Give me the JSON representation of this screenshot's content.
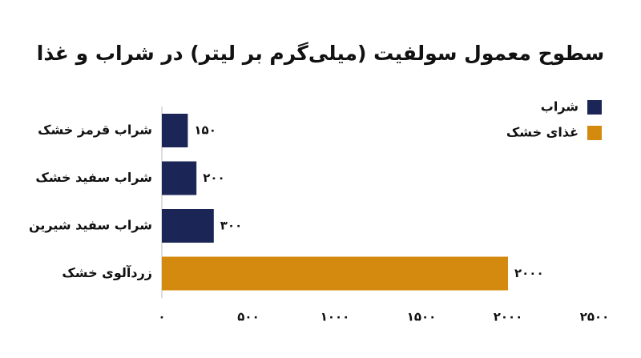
{
  "chart_data": {
    "type": "hbar",
    "title": "سطوح معمول سولفیت (میلی‌گرم بر لیتر) در شراب و غذا",
    "categories": [
      "شراب قرمز خشک",
      "شراب سفید خشک",
      "شراب سفید شیرین",
      "زردآلوی خشک"
    ],
    "series": [
      {
        "name": "شراب",
        "color": "#1b2656",
        "values": [
          150,
          200,
          300,
          null
        ],
        "value_labels": [
          "۱۵۰",
          "۲۰۰",
          "۳۰۰",
          null
        ]
      },
      {
        "name": "غذای خشک",
        "color": "#d4890f",
        "values": [
          null,
          null,
          null,
          2000
        ],
        "value_labels": [
          null,
          null,
          null,
          "۲۰۰۰"
        ]
      }
    ],
    "xlim": [
      0,
      2500
    ],
    "xticks": [
      {
        "value": 0,
        "label": "۰"
      },
      {
        "value": 500,
        "label": "۵۰۰"
      },
      {
        "value": 1000,
        "label": "۱۰۰۰"
      },
      {
        "value": 1500,
        "label": "۱۵۰۰"
      },
      {
        "value": 2000,
        "label": "۲۰۰۰"
      },
      {
        "value": 2500,
        "label": "۲۵۰۰"
      }
    ],
    "legend": "top-right"
  }
}
